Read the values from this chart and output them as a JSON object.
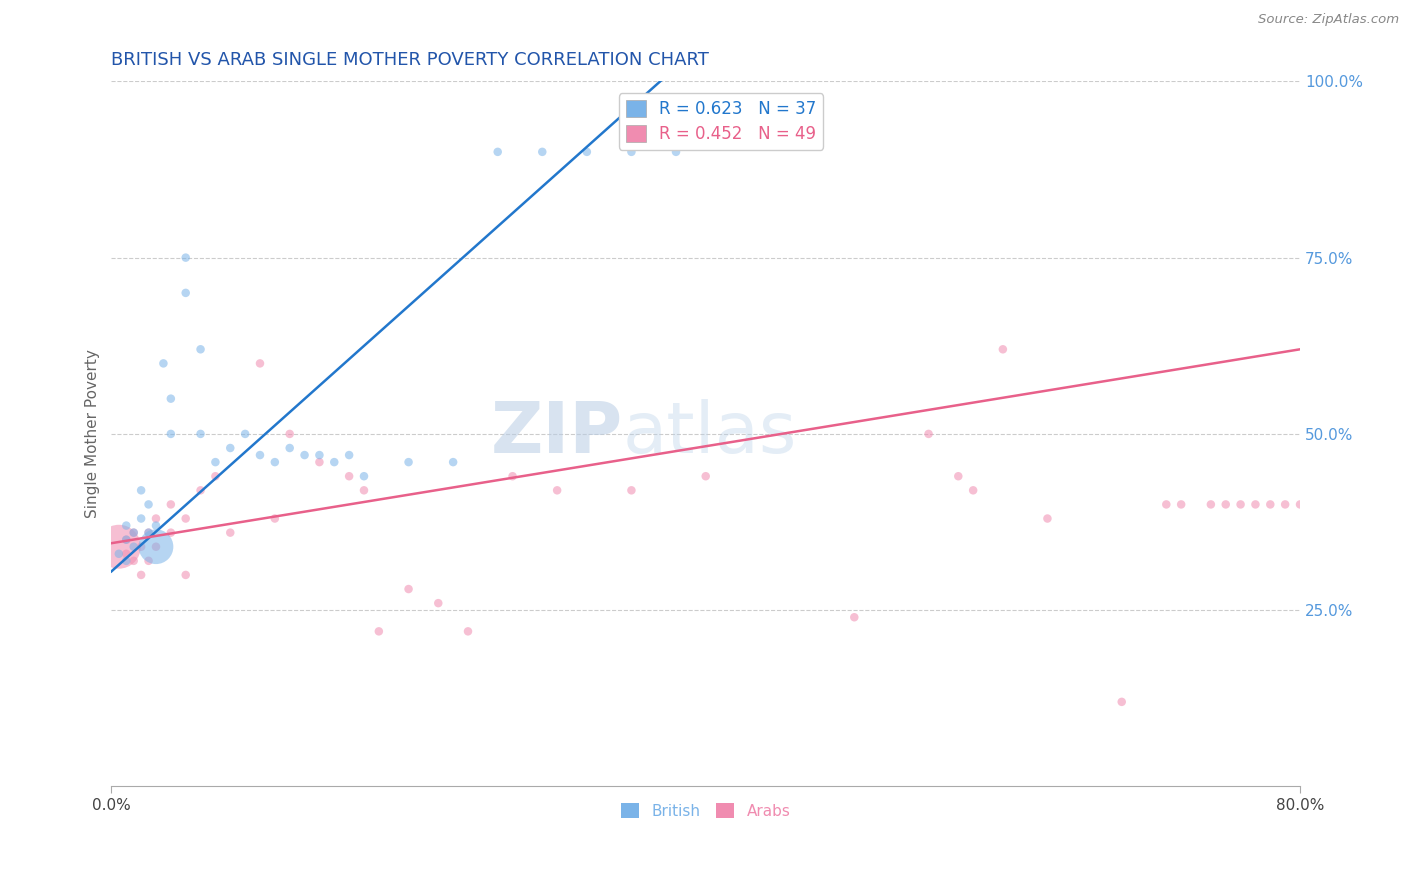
{
  "title": "BRITISH VS ARAB SINGLE MOTHER POVERTY CORRELATION CHART",
  "source": "Source: ZipAtlas.com",
  "ylabel": "Single Mother Poverty",
  "xlim": [
    0.0,
    0.8
  ],
  "ylim": [
    0.0,
    1.0
  ],
  "watermark": "ZIPatlas",
  "british_color": "#7ab3e8",
  "arab_color": "#f08cb0",
  "british_line_color": "#2277cc",
  "arab_line_color": "#e8608a",
  "background_color": "#ffffff",
  "grid_color": "#cccccc",
  "title_color": "#2255aa",
  "axis_label_color": "#666666",
  "right_tick_color": "#5599dd",
  "legend_label_brit_color": "#2277cc",
  "legend_label_arab_color": "#e8608a",
  "british_R": 0.623,
  "british_N": 37,
  "arab_R": 0.452,
  "arab_N": 49,
  "brit_trend_x0": 0.0,
  "brit_trend_y0": 0.305,
  "brit_trend_x1": 0.38,
  "brit_trend_y1": 1.02,
  "arab_trend_x0": 0.0,
  "arab_trend_y0": 0.345,
  "arab_trend_x1": 0.8,
  "arab_trend_y1": 0.62,
  "british_scatter_x": [
    0.005,
    0.01,
    0.01,
    0.01,
    0.015,
    0.015,
    0.02,
    0.02,
    0.025,
    0.025,
    0.03,
    0.03,
    0.035,
    0.04,
    0.04,
    0.05,
    0.05,
    0.06,
    0.06,
    0.07,
    0.08,
    0.09,
    0.1,
    0.11,
    0.12,
    0.13,
    0.14,
    0.15,
    0.16,
    0.17,
    0.2,
    0.23,
    0.26,
    0.29,
    0.32,
    0.35,
    0.38
  ],
  "british_scatter_y": [
    0.33,
    0.35,
    0.37,
    0.32,
    0.34,
    0.36,
    0.38,
    0.42,
    0.36,
    0.4,
    0.34,
    0.37,
    0.6,
    0.55,
    0.5,
    0.7,
    0.75,
    0.62,
    0.5,
    0.46,
    0.48,
    0.5,
    0.47,
    0.46,
    0.48,
    0.47,
    0.47,
    0.46,
    0.47,
    0.44,
    0.46,
    0.46,
    0.9,
    0.9,
    0.9,
    0.9,
    0.9
  ],
  "british_scatter_sizes": [
    15,
    15,
    15,
    15,
    15,
    15,
    15,
    15,
    15,
    15,
    250,
    15,
    15,
    15,
    15,
    15,
    15,
    15,
    15,
    15,
    15,
    15,
    15,
    15,
    15,
    15,
    15,
    15,
    15,
    15,
    15,
    15,
    15,
    15,
    15,
    15,
    15
  ],
  "arab_scatter_x": [
    0.005,
    0.01,
    0.01,
    0.015,
    0.015,
    0.02,
    0.02,
    0.025,
    0.025,
    0.03,
    0.03,
    0.04,
    0.04,
    0.05,
    0.05,
    0.06,
    0.07,
    0.08,
    0.1,
    0.11,
    0.12,
    0.14,
    0.16,
    0.17,
    0.18,
    0.2,
    0.22,
    0.24,
    0.27,
    0.3,
    0.35,
    0.4,
    0.5,
    0.55,
    0.57,
    0.58,
    0.6,
    0.63,
    0.68,
    0.71,
    0.72,
    0.74,
    0.75,
    0.76,
    0.77,
    0.78,
    0.79,
    0.8,
    0.81
  ],
  "arab_scatter_y": [
    0.34,
    0.33,
    0.35,
    0.36,
    0.32,
    0.34,
    0.3,
    0.36,
    0.32,
    0.38,
    0.34,
    0.36,
    0.4,
    0.38,
    0.3,
    0.42,
    0.44,
    0.36,
    0.6,
    0.38,
    0.5,
    0.46,
    0.44,
    0.42,
    0.22,
    0.28,
    0.26,
    0.22,
    0.44,
    0.42,
    0.42,
    0.44,
    0.24,
    0.5,
    0.44,
    0.42,
    0.62,
    0.38,
    0.12,
    0.4,
    0.4,
    0.4,
    0.4,
    0.4,
    0.4,
    0.4,
    0.4,
    0.4,
    0.4
  ],
  "arab_scatter_sizes": [
    400,
    15,
    15,
    15,
    15,
    15,
    15,
    15,
    15,
    15,
    15,
    15,
    15,
    15,
    15,
    15,
    15,
    15,
    15,
    15,
    15,
    15,
    15,
    15,
    15,
    15,
    15,
    15,
    15,
    15,
    15,
    15,
    15,
    15,
    15,
    15,
    15,
    15,
    15,
    15,
    15,
    15,
    15,
    15,
    15,
    15,
    15,
    15,
    15
  ]
}
